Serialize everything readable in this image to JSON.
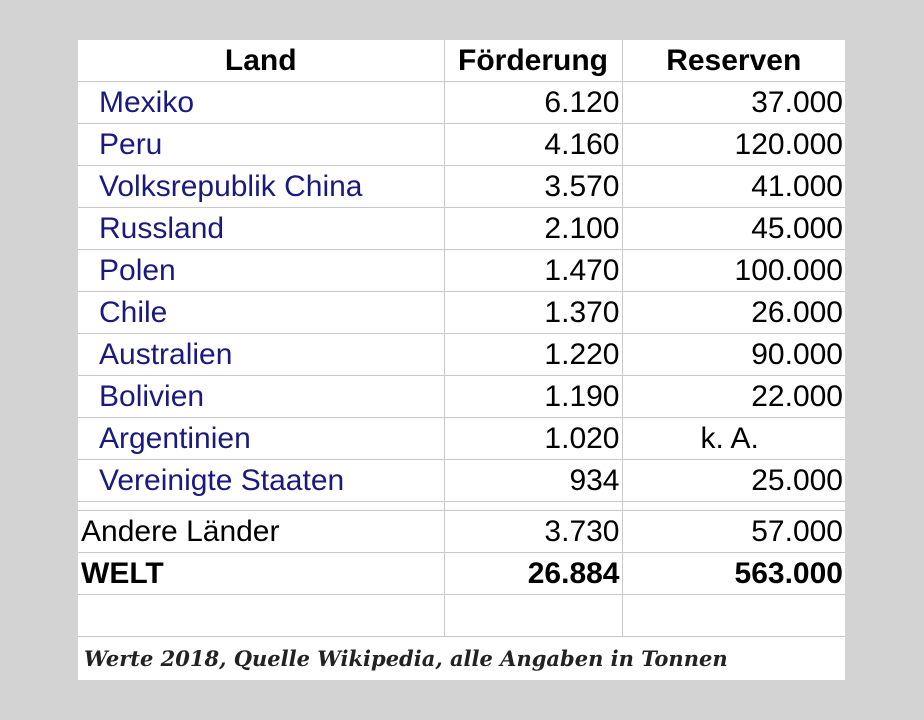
{
  "table": {
    "headers": [
      "Land",
      "Förderung",
      "Reserven"
    ],
    "rows": [
      {
        "land": "Mexiko",
        "foerderung": "6.120",
        "reserven": "37.000"
      },
      {
        "land": "Peru",
        "foerderung": "4.160",
        "reserven": "120.000"
      },
      {
        "land": "Volksrepublik China",
        "foerderung": "3.570",
        "reserven": "41.000"
      },
      {
        "land": "Russland",
        "foerderung": "2.100",
        "reserven": "45.000"
      },
      {
        "land": "Polen",
        "foerderung": "1.470",
        "reserven": "100.000"
      },
      {
        "land": "Chile",
        "foerderung": "1.370",
        "reserven": "26.000"
      },
      {
        "land": "Australien",
        "foerderung": "1.220",
        "reserven": "90.000"
      },
      {
        "land": "Bolivien",
        "foerderung": "1.190",
        "reserven": "22.000"
      },
      {
        "land": "Argentinien",
        "foerderung": "1.020",
        "reserven": "k. A."
      },
      {
        "land": "Vereinigte Staaten",
        "foerderung": "934",
        "reserven": "25.000"
      }
    ],
    "other": {
      "land": "Andere Länder",
      "foerderung": "3.730",
      "reserven": "57.000"
    },
    "total": {
      "land": "WELT",
      "foerderung": "26.884",
      "reserven": "563.000"
    },
    "note": "Werte 2018, Quelle Wikipedia, alle Angaben in Tonnen"
  },
  "colors": {
    "link": "#1a1a7e",
    "background": "#d3d3d3",
    "sheet": "#ffffff",
    "grid": "#c8c8c8"
  }
}
